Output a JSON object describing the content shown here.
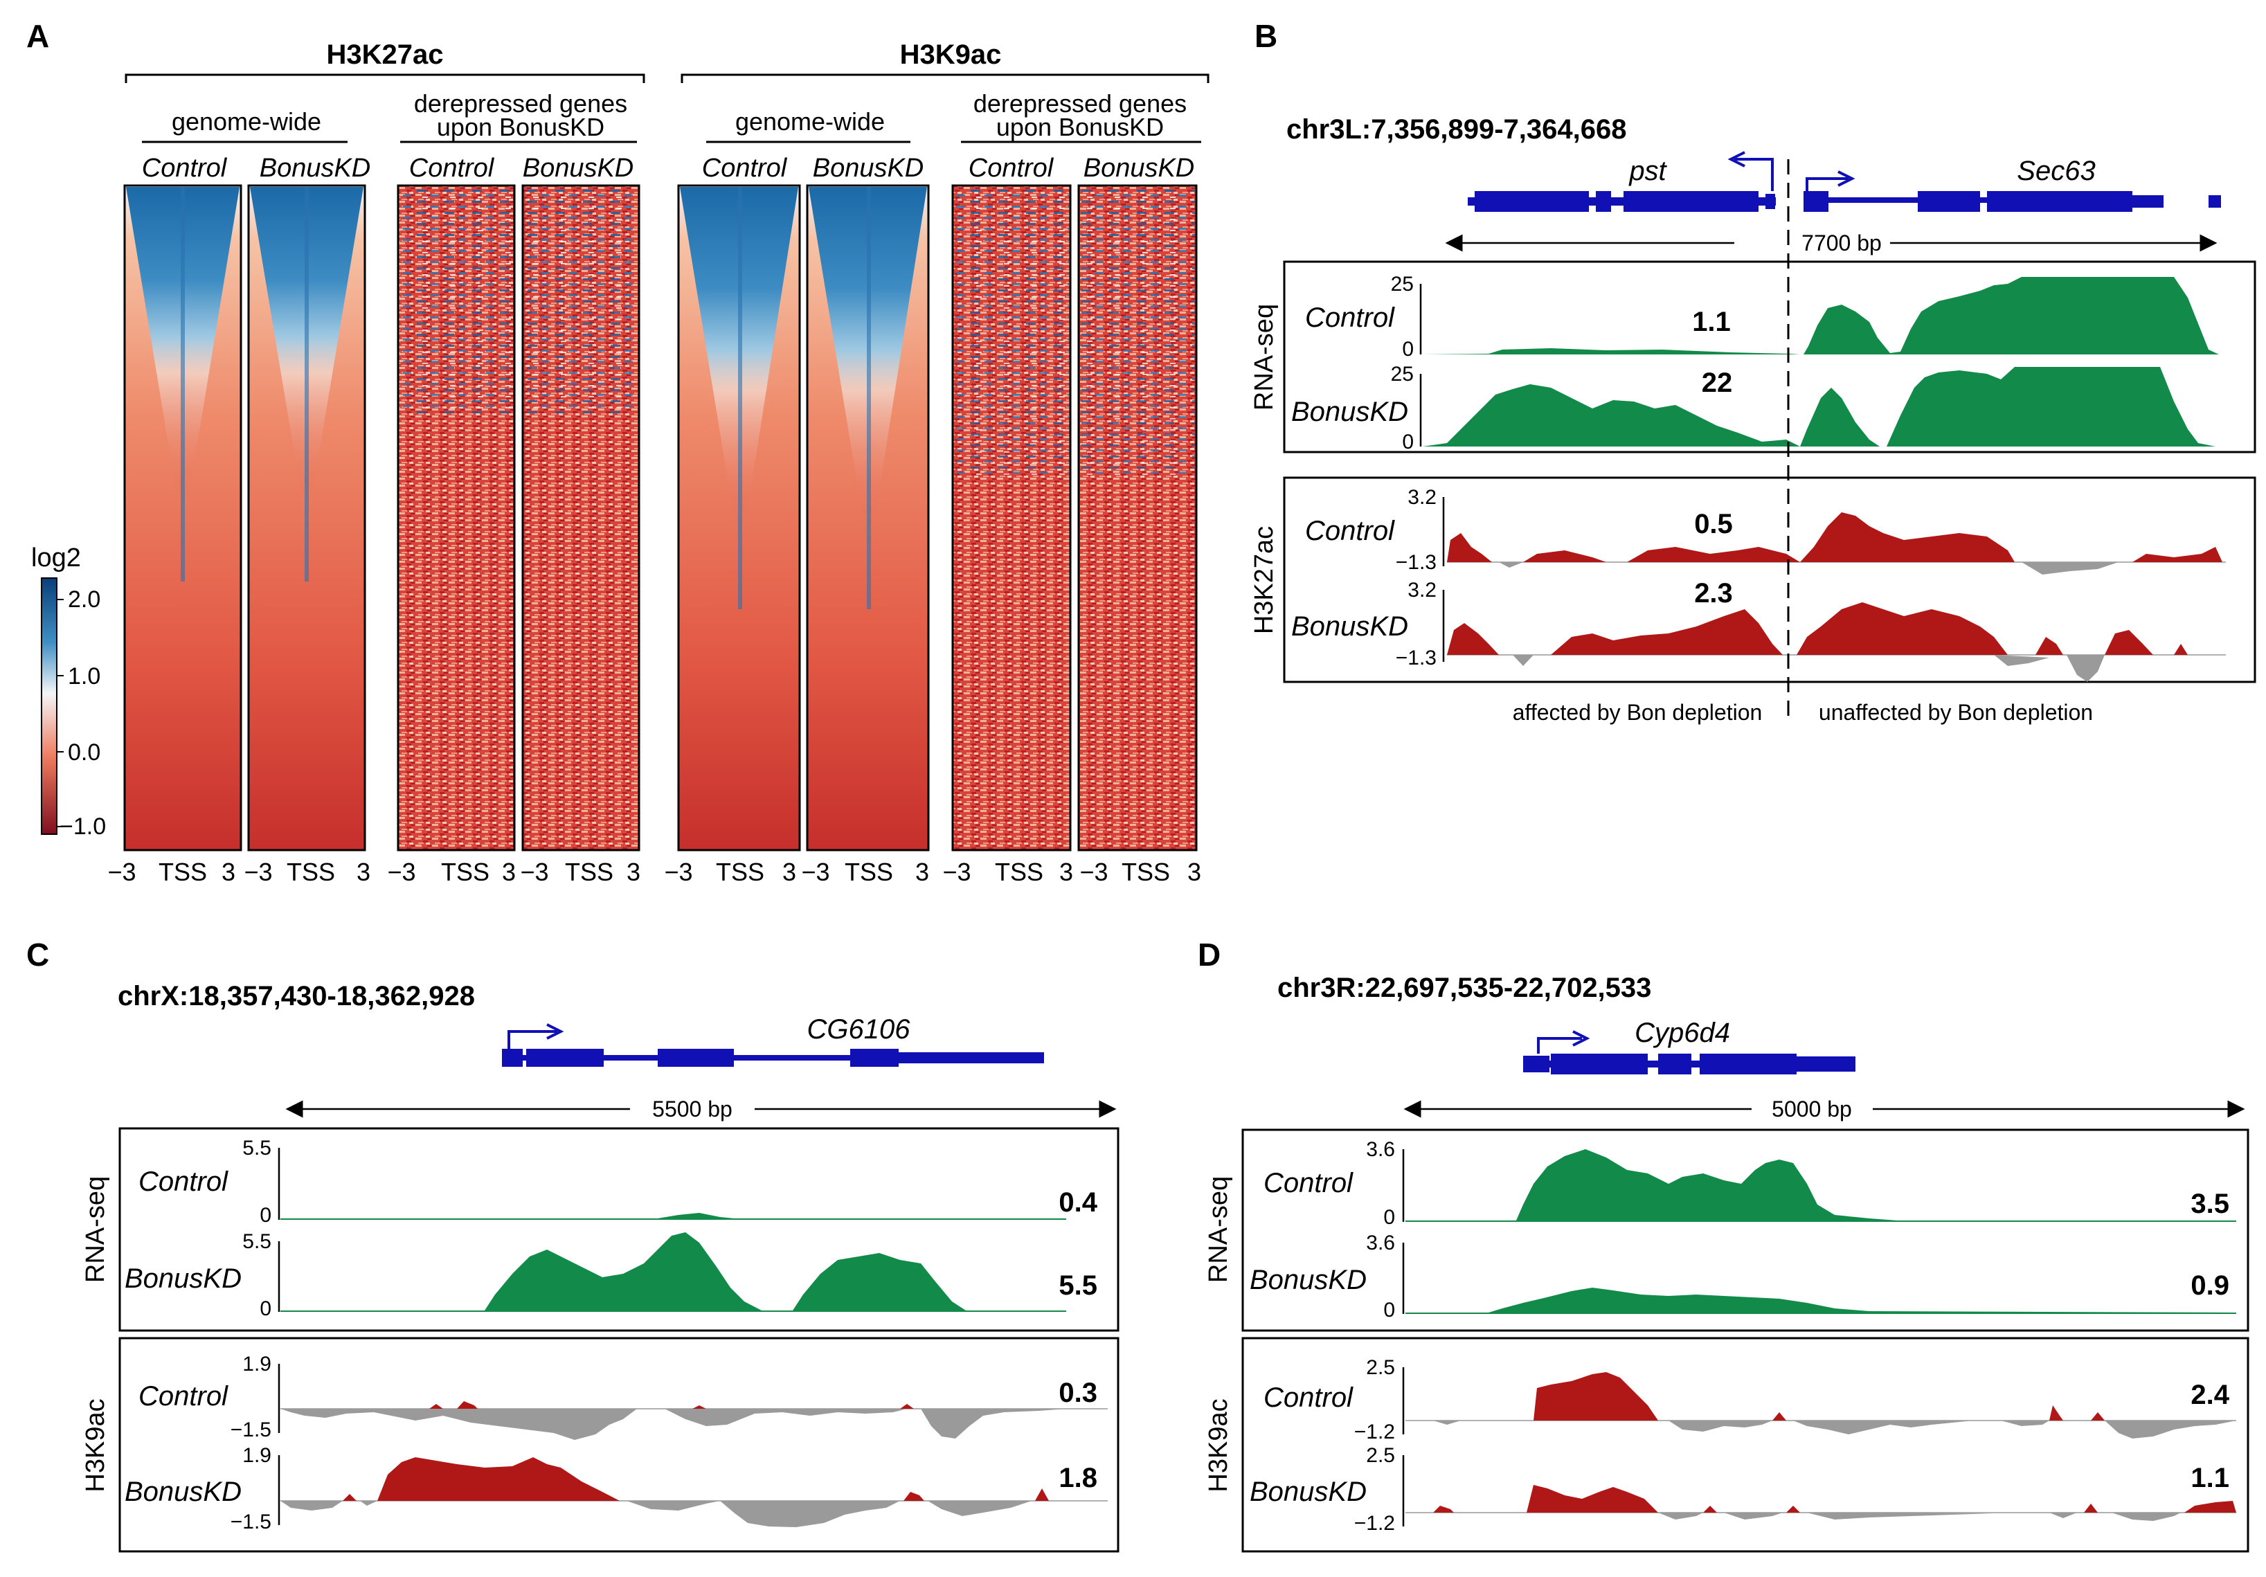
{
  "panels": {
    "a": "A",
    "b": "B",
    "c": "C",
    "d": "D"
  },
  "colors": {
    "blue": "#1f6fb0",
    "red": "#d0342b",
    "green": "#128a4a",
    "darkred": "#b01818",
    "gray": "#9a9a9a",
    "gene": "#1010b4"
  },
  "panelA": {
    "mark1": "H3K27ac",
    "mark2": "H3K9ac",
    "sub_genome": "genome-wide",
    "sub_derep_1": "derepressed genes",
    "sub_derep_2": "upon BonusKD",
    "col_control": "Control",
    "col_kd": "BonusKD",
    "x_left": "−3",
    "x_mid": "TSS",
    "x_right": "3",
    "legend_title": "log2",
    "legend_ticks": [
      "2.0",
      "1.0",
      "0.0",
      "−1.0"
    ]
  },
  "panelB": {
    "region": "chr3L:7,356,899-7,364,668",
    "gene1": "pst",
    "gene2": "Sec63",
    "scale": "7700 bp",
    "rnaseq_label": "RNA-seq",
    "chip_label": "H3K27ac",
    "track_control": "Control",
    "track_kd": "BonusKD",
    "rna_max": "25",
    "rna_min": "0",
    "chip_max": "3.2",
    "chip_min": "−1.3",
    "val_rna_control": "1.1",
    "val_rna_kd": "22",
    "val_chip_control": "0.5",
    "val_chip_kd": "2.3",
    "note_left": "affected by Bon depletion",
    "note_right": "unaffected by Bon depletion"
  },
  "panelC": {
    "region": "chrX:18,357,430-18,362,928",
    "gene": "CG6106",
    "scale": "5500 bp",
    "rnaseq_label": "RNA-seq",
    "chip_label": "H3K9ac",
    "track_control": "Control",
    "track_kd": "BonusKD",
    "rna_max": "5.5",
    "rna_min": "0",
    "chip_max": "1.9",
    "chip_min": "−1.5",
    "val_rna_control": "0.4",
    "val_rna_kd": "5.5",
    "val_chip_control": "0.3",
    "val_chip_kd": "1.8"
  },
  "panelD": {
    "region": "chr3R:22,697,535-22,702,533",
    "gene": "Cyp6d4",
    "scale": "5000 bp",
    "rnaseq_label": "RNA-seq",
    "chip_label": "H3K9ac",
    "track_control": "Control",
    "track_kd": "BonusKD",
    "rna_max": "3.6",
    "rna_min": "0",
    "chip_max": "2.5",
    "chip_min": "−1.2",
    "val_rna_control": "3.5",
    "val_rna_kd": "0.9",
    "val_chip_control": "2.4",
    "val_chip_kd": "1.1"
  }
}
